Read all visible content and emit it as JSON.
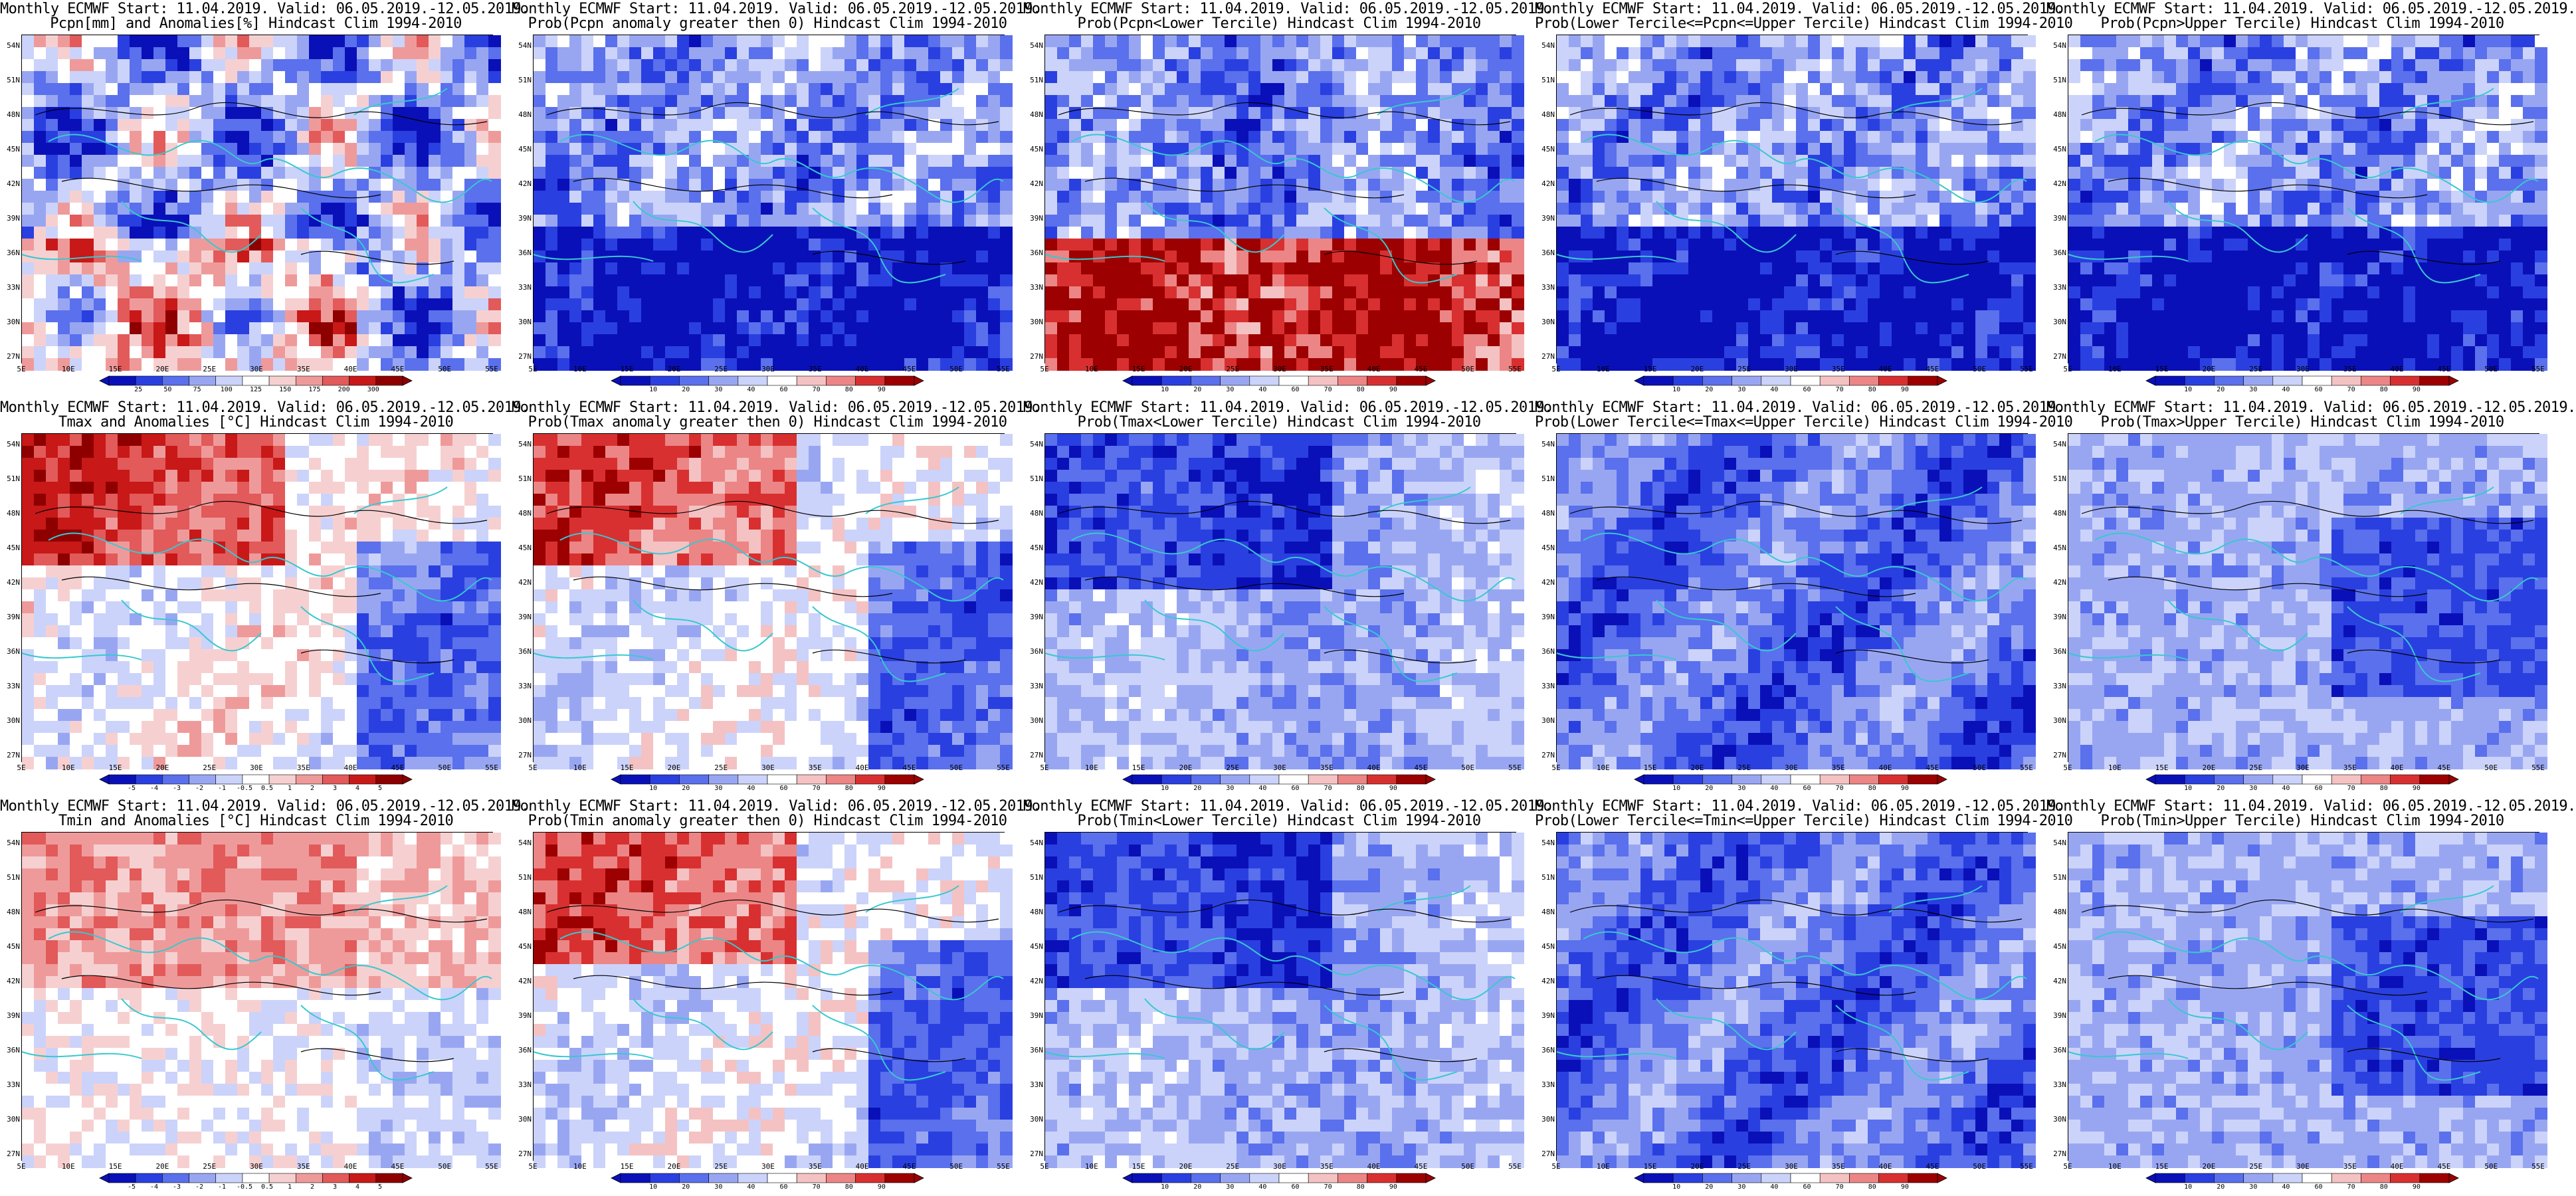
{
  "colors": {
    "coast": "#38c8d0",
    "contour": "#000000",
    "prob_scale": [
      "#0a10b8",
      "#2a3fe0",
      "#5a70ec",
      "#98a6f2",
      "#cbd3fa",
      "#ffffff",
      "#f4c2c2",
      "#ec8585",
      "#d83030",
      "#9c0000"
    ],
    "anom_scale": [
      "#0a10b8",
      "#2a3fe0",
      "#5a70ec",
      "#98a6f2",
      "#cbd3fa",
      "#ffffff",
      "#f6d0d0",
      "#ef9a9a",
      "#e25a5a",
      "#c81818",
      "#8e0000"
    ]
  },
  "axes": {
    "lat_ticks": [
      "54N",
      "51N",
      "48N",
      "45N",
      "42N",
      "39N",
      "36N",
      "33N",
      "30N",
      "27N"
    ],
    "lon_ticks": [
      "5E",
      "10E",
      "15E",
      "20E",
      "25E",
      "30E",
      "35E",
      "40E",
      "45E",
      "50E",
      "55E"
    ]
  },
  "colorbars": {
    "pcpn_anom": [
      "25",
      "50",
      "75",
      "100",
      "125",
      "150",
      "175",
      "200",
      "300"
    ],
    "prob": [
      "10",
      "20",
      "30",
      "40",
      "60",
      "70",
      "80",
      "90"
    ],
    "temp_anom": [
      "-5",
      "-4",
      "-3",
      "-2",
      "-1",
      "-0.5",
      "0.5",
      "1",
      "2",
      "3",
      "4",
      "5"
    ]
  },
  "panels": [
    {
      "line1": "Monthly ECMWF Start: 11.04.2019. Valid: 06.05.2019.-12.05.2019.",
      "line2": "Pcpn[mm] and Anomalies[%] Hindcast Clim 1994-2010",
      "scale": "pcpn_anom",
      "pattern": "pcpn_anom"
    },
    {
      "line1": "Monthly ECMWF Start: 11.04.2019. Valid: 06.05.2019.-12.05.2019.",
      "line2": "Prob(Pcpn anomaly greater then 0) Hindcast Clim 1994-2010",
      "scale": "prob",
      "pattern": "dry_south"
    },
    {
      "line1": "Monthly ECMWF Start: 11.04.2019. Valid: 06.05.2019.-12.05.2019.",
      "line2": "Prob(Pcpn<Lower Tercile) Hindcast Clim 1994-2010",
      "scale": "prob",
      "pattern": "red_south"
    },
    {
      "line1": "Monthly ECMWF Start: 11.04.2019. Valid: 06.05.2019.-12.05.2019.",
      "line2": "Prob(Lower Tercile<=Pcpn<=Upper Tercile) Hindcast Clim 1994-2010",
      "scale": "prob",
      "pattern": "dry_south"
    },
    {
      "line1": "Monthly ECMWF Start: 11.04.2019. Valid: 06.05.2019.-12.05.2019.",
      "line2": "Prob(Pcpn>Upper Tercile) Hindcast Clim 1994-2010",
      "scale": "prob",
      "pattern": "dry_south"
    },
    {
      "line1": "Monthly ECMWF Start: 11.04.2019. Valid: 06.05.2019.-12.05.2019.",
      "line2": "Tmax and Anomalies [°C] Hindcast Clim 1994-2010",
      "scale": "temp_anom",
      "pattern": "warm_north"
    },
    {
      "line1": "Monthly ECMWF Start: 11.04.2019. Valid: 06.05.2019.-12.05.2019.",
      "line2": "Prob(Tmax anomaly greater then 0) Hindcast Clim 1994-2010",
      "scale": "prob",
      "pattern": "warm_north"
    },
    {
      "line1": "Monthly ECMWF Start: 11.04.2019. Valid: 06.05.2019.-12.05.2019.",
      "line2": "Prob(Tmax<Lower Tercile) Hindcast Clim 1994-2010",
      "scale": "prob",
      "pattern": "cold_north"
    },
    {
      "line1": "Monthly ECMWF Start: 11.04.2019. Valid: 06.05.2019.-12.05.2019.",
      "line2": "Prob(Lower Tercile<=Tmax<=Upper Tercile) Hindcast Clim 1994-2010",
      "scale": "prob",
      "pattern": "blue_all"
    },
    {
      "line1": "Monthly ECMWF Start: 11.04.2019. Valid: 06.05.2019.-12.05.2019.",
      "line2": "Prob(Tmax>Upper Tercile) Hindcast Clim 1994-2010",
      "scale": "prob",
      "pattern": "blue_east"
    },
    {
      "line1": "Monthly ECMWF Start: 11.04.2019. Valid: 06.05.2019.-12.05.2019.",
      "line2": "Tmin and Anomalies [°C] Hindcast Clim 1994-2010",
      "scale": "temp_anom",
      "pattern": "warm_north_light"
    },
    {
      "line1": "Monthly ECMWF Start: 11.04.2019. Valid: 06.05.2019.-12.05.2019.",
      "line2": "Prob(Tmin anomaly greater then 0) Hindcast Clim 1994-2010",
      "scale": "prob",
      "pattern": "warm_north"
    },
    {
      "line1": "Monthly ECMWF Start: 11.04.2019. Valid: 06.05.2019.-12.05.2019.",
      "line2": "Prob(Tmin<Lower Tercile) Hindcast Clim 1994-2010",
      "scale": "prob",
      "pattern": "cold_north"
    },
    {
      "line1": "Monthly ECMWF Start: 11.04.2019. Valid: 06.05.2019.-12.05.2019.",
      "line2": "Prob(Lower Tercile<=Tmin<=Upper Tercile) Hindcast Clim 1994-2010",
      "scale": "prob",
      "pattern": "blue_all"
    },
    {
      "line1": "Monthly ECMWF Start: 11.04.2019. Valid: 06.05.2019.-12.05.2019.",
      "line2": "Prob(Tmin>Upper Tercile) Hindcast Clim 1994-2010",
      "scale": "prob",
      "pattern": "blue_east"
    }
  ]
}
